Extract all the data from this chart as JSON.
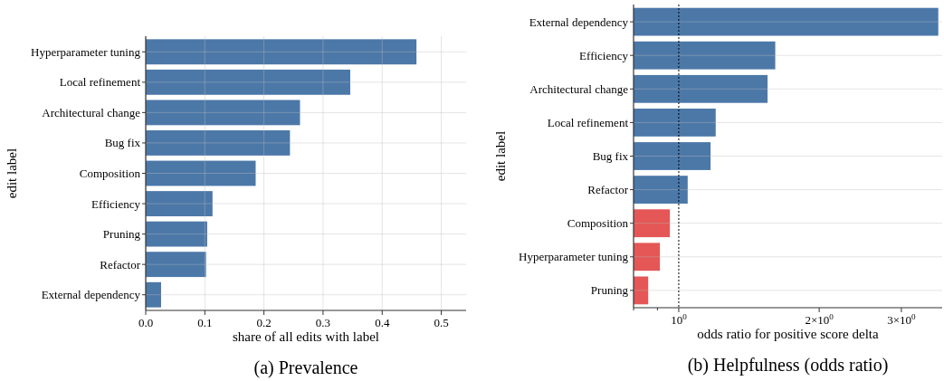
{
  "chart_data": [
    {
      "type": "bar",
      "orientation": "horizontal",
      "title": "(a) Prevalence",
      "xlabel": "share of all edits with label",
      "ylabel": "edit label",
      "categories": [
        "Hyperparameter tuning",
        "Local refinement",
        "Architectural change",
        "Bug fix",
        "Composition",
        "Efficiency",
        "Pruning",
        "Refactor",
        "External dependency"
      ],
      "values": [
        0.458,
        0.346,
        0.261,
        0.244,
        0.186,
        0.113,
        0.104,
        0.102,
        0.026
      ],
      "color": "#4c78a8",
      "xlim": [
        0,
        0.542
      ],
      "xticks": [
        {
          "value": 0,
          "label": "0.0"
        },
        0.1,
        0.2,
        0.3,
        0.4,
        0.5
      ],
      "grid": true
    },
    {
      "type": "bar",
      "orientation": "horizontal",
      "title": "(b) Helpfulness (odds ratio)",
      "xlabel": "odds ratio for positive score delta",
      "ylabel": "edit label",
      "categories": [
        "External dependency",
        "Efficiency",
        "Architectural change",
        "Local refinement",
        "Bug fix",
        "Refactor",
        "Composition",
        "Hyperparameter tuning",
        "Pruning"
      ],
      "values": [
        3.6,
        1.61,
        1.55,
        1.2,
        1.17,
        1.045,
        0.957,
        0.911,
        0.86
      ],
      "colors": [
        "#4c78a8",
        "#4c78a8",
        "#4c78a8",
        "#4c78a8",
        "#4c78a8",
        "#4c78a8",
        "#e45756",
        "#e45756",
        "#e45756"
      ],
      "log": "x",
      "xlim": [
        0.8,
        3.67
      ],
      "xticks": [
        {
          "value": 0.8,
          "label": null
        },
        {
          "value": 0.9,
          "label": null
        },
        {
          "value": 1,
          "label": "10$^{0}$"
        },
        {
          "value": 2,
          "label": "2×10$^{0}$"
        },
        {
          "value": 3,
          "label": "3×10$^{0}$"
        }
      ],
      "grid": "y",
      "ref_lines": [
        {
          "axis": "x",
          "value": 1,
          "line_style": "dotted",
          "color": "#000000"
        }
      ]
    }
  ]
}
